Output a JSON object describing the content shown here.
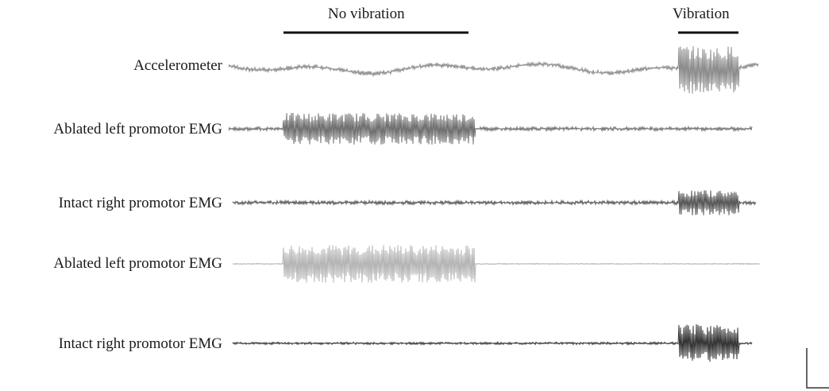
{
  "periods": {
    "no_vibration": "No vibration",
    "vibration": "Vibration"
  },
  "traces": [
    {
      "label": "Accelerometer",
      "color": "#8a8a8a",
      "bursts": [
        "vibration"
      ]
    },
    {
      "label": "Ablated left promotor EMG",
      "color": "#6e6e6e",
      "bursts": [
        "no_vibration"
      ]
    },
    {
      "label": "Intact right promotor EMG",
      "color": "#555555",
      "bursts": [
        "vibration"
      ]
    },
    {
      "label": "Ablated left promotor EMG",
      "color": "#b4b4b4",
      "bursts": [
        "no_vibration"
      ]
    },
    {
      "label": "Intact right promotor EMG",
      "color": "#333333",
      "bursts": [
        "vibration"
      ]
    }
  ]
}
